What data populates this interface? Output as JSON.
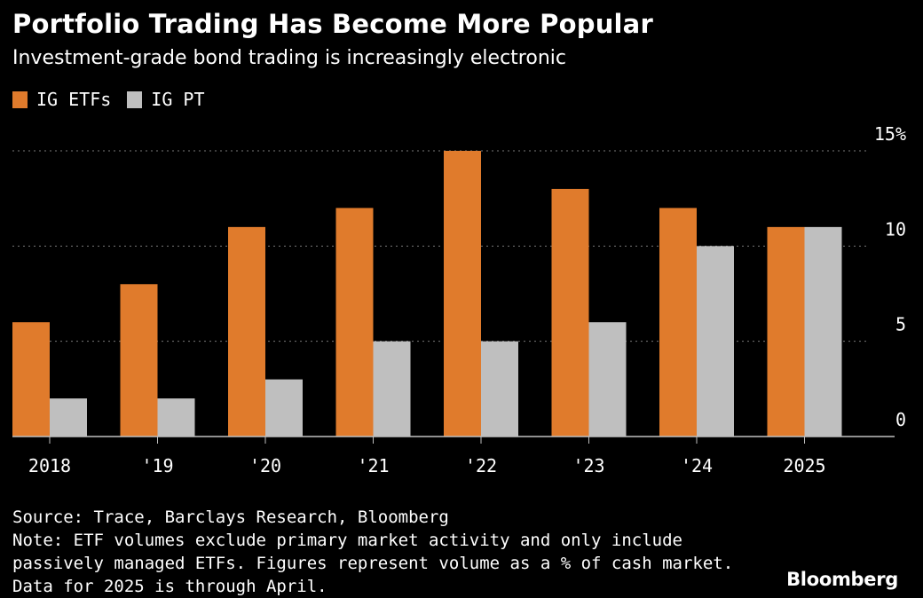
{
  "title": "Portfolio Trading Has Become More Popular",
  "subtitle": "Investment-grade bond trading is increasingly electronic",
  "colors": {
    "background": "#000000",
    "etf": "#e07b2c",
    "pt": "#bfbfbf",
    "grid": "#7a7a7a",
    "axis": "#bfbfbf",
    "text": "#ffffff"
  },
  "chart_data": {
    "type": "bar",
    "categories": [
      "2018",
      "'19",
      "'20",
      "'21",
      "'22",
      "'23",
      "'24",
      "2025"
    ],
    "series": [
      {
        "name": "IG ETFs",
        "color": "#e07b2c",
        "values": [
          6,
          8,
          11,
          12,
          15,
          13,
          12,
          11
        ]
      },
      {
        "name": "IG PT",
        "color": "#bfbfbf",
        "values": [
          2,
          2,
          3,
          5,
          5,
          6,
          10,
          11
        ]
      }
    ],
    "yticks": [
      "15%",
      "10",
      "5",
      "0"
    ],
    "ytick_values": [
      15,
      10,
      5,
      0
    ],
    "ylim": [
      0,
      15
    ],
    "y_axis_position": "right",
    "grid": true,
    "legend_position": "top-left",
    "xlabel": "",
    "ylabel": ""
  },
  "footer": {
    "source": "Source: Trace, Barclays Research, Bloomberg",
    "note_line1": "Note: ETF volumes exclude primary market activity and only include",
    "note_line2": "passively managed ETFs. Figures represent volume as a % of cash market.",
    "note_line3": "Data for 2025 is through April."
  },
  "brand": "Bloomberg"
}
